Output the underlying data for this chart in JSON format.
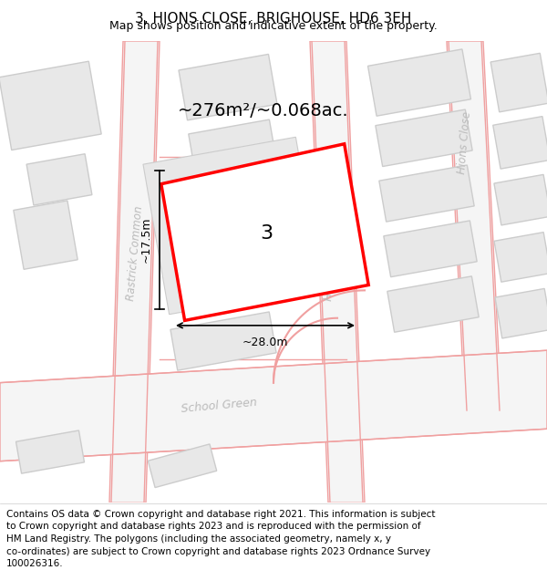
{
  "title": "3, HIONS CLOSE, BRIGHOUSE, HD6 3EH",
  "subtitle": "Map shows position and indicative extent of the property.",
  "footer_lines": [
    "Contains OS data © Crown copyright and database right 2021. This information is subject",
    "to Crown copyright and database rights 2023 and is reproduced with the permission of",
    "HM Land Registry. The polygons (including the associated geometry, namely x, y",
    "co-ordinates) are subject to Crown copyright and database rights 2023 Ordnance Survey",
    "100026316."
  ],
  "area_label": "~276m²/~0.068ac.",
  "plot_number": "3",
  "width_label": "~28.0m",
  "height_label": "~17.5m",
  "plot_color": "#ff0000",
  "road_line_color": "#f0a0a0",
  "road_fill_color": "#f8f8f8",
  "building_fill": "#e8e8e8",
  "building_edge": "#cccccc",
  "map_bg": "#f7f7f7",
  "street_label_color": "#bbbbbb",
  "title_fontsize": 11,
  "subtitle_fontsize": 9,
  "footer_fontsize": 7.5,
  "area_fontsize": 14,
  "dim_fontsize": 9,
  "street_fontsize": 8.5,
  "plot_number_fontsize": 16
}
